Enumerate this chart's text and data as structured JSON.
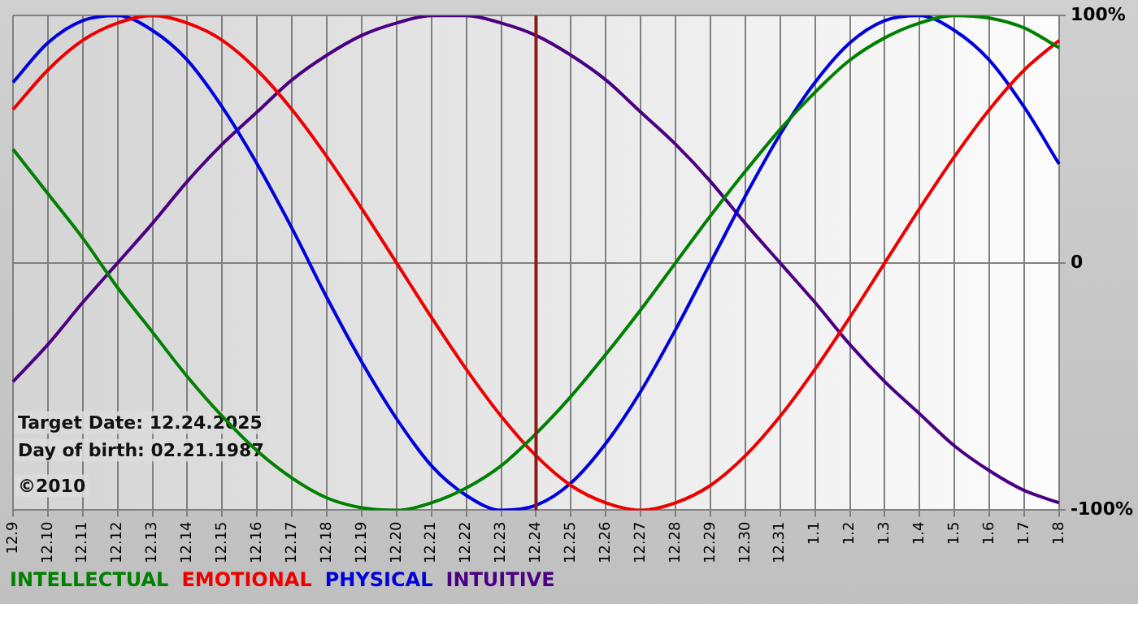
{
  "chart_data": {
    "type": "line",
    "categories": [
      "12.9",
      "12.10",
      "12.11",
      "12.12",
      "12.13",
      "12.14",
      "12.15",
      "12.16",
      "12.17",
      "12.18",
      "12.19",
      "12.20",
      "12.21",
      "12.22",
      "12.23",
      "12.24",
      "12.25",
      "12.26",
      "12.27",
      "12.28",
      "12.29",
      "12.30",
      "12.31",
      "1.1",
      "1.2",
      "1.3",
      "1.4",
      "1.5",
      "1.6",
      "1.7",
      "1.8"
    ],
    "series": [
      {
        "name": "INTELLECTUAL",
        "color": "#008000",
        "values": [
          46,
          28,
          10,
          -10,
          -28,
          -46,
          -62,
          -76,
          -87,
          -95,
          -99,
          -100,
          -97,
          -91,
          -82,
          -69,
          -54,
          -37,
          -19,
          0,
          19,
          37,
          54,
          69,
          82,
          91,
          97,
          100,
          99,
          95,
          87
        ]
      },
      {
        "name": "EMOTIONAL",
        "color": "#ee0000",
        "values": [
          62,
          78,
          90,
          97,
          100,
          97,
          90,
          78,
          62,
          43,
          22,
          0,
          -22,
          -43,
          -62,
          -78,
          -90,
          -97,
          -100,
          -97,
          -90,
          -78,
          -62,
          -43,
          -22,
          0,
          22,
          43,
          62,
          78,
          90
        ]
      },
      {
        "name": "PHYSICAL",
        "color": "#0000dd",
        "values": [
          73,
          89,
          98,
          100,
          94,
          82,
          63,
          40,
          14,
          -14,
          -40,
          -63,
          -82,
          -94,
          -100,
          -98,
          -89,
          -73,
          -52,
          -27,
          0,
          27,
          52,
          73,
          89,
          98,
          100,
          94,
          82,
          63,
          40
        ]
      },
      {
        "name": "INTUITIVE",
        "color": "#4b0082",
        "values": [
          -48,
          -33,
          -16,
          0,
          16,
          33,
          48,
          61,
          74,
          84,
          92,
          97,
          100,
          100,
          97,
          92,
          84,
          74,
          61,
          48,
          33,
          16,
          0,
          -16,
          -33,
          -48,
          -61,
          -74,
          -84,
          -92,
          -97
        ]
      }
    ],
    "ylim": [
      -100,
      100
    ],
    "yticks": [
      {
        "value": -100,
        "label": "-100%"
      },
      0,
      {
        "value": 100,
        "label": "100%"
      }
    ],
    "grid": true,
    "legend": "bottom",
    "marker": "none",
    "ref_lines": [
      {
        "axis": "x",
        "value": "12.24",
        "color": "#8b1a1a"
      }
    ],
    "annotations": [
      "Target Date: 12.24.2025",
      "Day of birth: 02.21.1987",
      "©2010"
    ]
  }
}
